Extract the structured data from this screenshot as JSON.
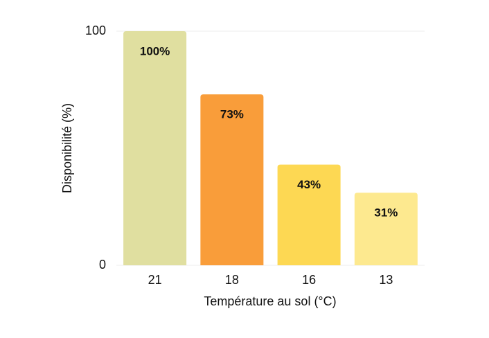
{
  "chart_data": {
    "type": "bar",
    "x_label": "Température au sol (°C)",
    "y_label": "Disponibilité (%)",
    "categories": [
      "21",
      "18",
      "16",
      "13"
    ],
    "values": [
      100,
      73,
      43,
      31
    ],
    "value_labels": [
      "100%",
      "73%",
      "43%",
      "31%"
    ],
    "colors": [
      "#e0dfa0",
      "#f99d3a",
      "#fdd853",
      "#fde98f"
    ],
    "ylim": [
      0,
      100
    ],
    "yticks": [
      0,
      100
    ],
    "grid": true
  }
}
